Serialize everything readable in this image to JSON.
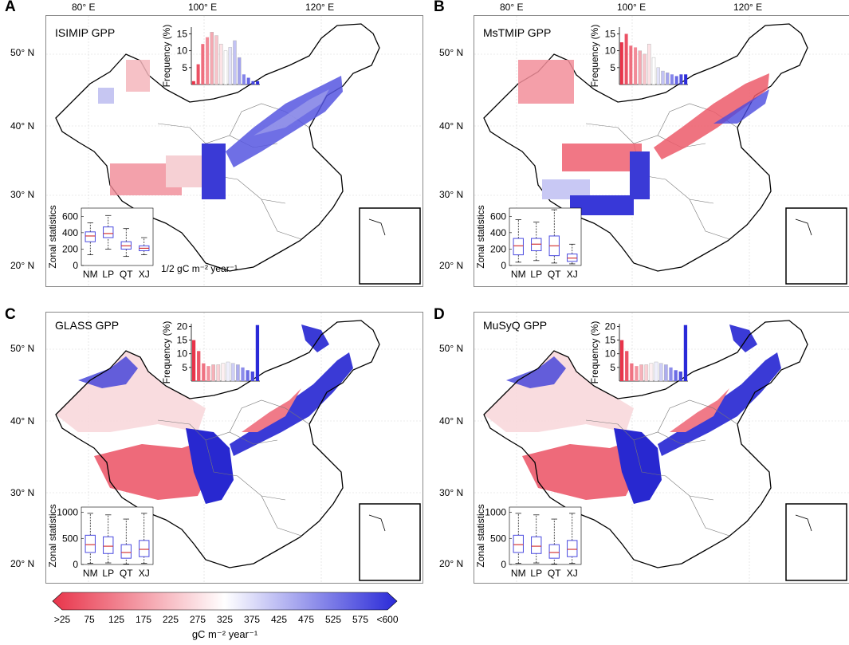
{
  "colors": {
    "low": "#e8344a",
    "mid": "#ffffff",
    "high": "#2a2ad8",
    "box": "#4a4ae0",
    "median": "#d43838",
    "grid": "#c8c8c8"
  },
  "axes": {
    "lon_labels": [
      "80° E",
      "100° E",
      "120° E"
    ],
    "lat_labels": [
      "50° N",
      "40° N",
      "30° N",
      "20° N"
    ]
  },
  "panels": [
    {
      "letter": "A",
      "title": "ISIMIP GPP",
      "hist_ylabel": "Frequency (%)",
      "box_ylabel": "Zonal statistics",
      "unit_note": "1/2 gC m⁻² year⁻¹"
    },
    {
      "letter": "B",
      "title": "MsTMIP GPP",
      "hist_ylabel": "Frequency (%)",
      "box_ylabel": "Zonal statistics",
      "unit_note": ""
    },
    {
      "letter": "C",
      "title": "GLASS GPP",
      "hist_ylabel": "Frequency (%)",
      "box_ylabel": "Zonal statistics",
      "unit_note": ""
    },
    {
      "letter": "D",
      "title": "MuSyQ GPP",
      "hist_ylabel": "Frequency (%)",
      "box_ylabel": "Zonal statistics",
      "unit_note": ""
    }
  ],
  "colorbar": {
    "ticks": [
      ">25",
      "75",
      "125",
      "175",
      "225",
      "275",
      "325",
      "375",
      "425",
      "475",
      "525",
      "575",
      "<600"
    ],
    "title": "gC m⁻² year⁻¹"
  },
  "chart_data": [
    {
      "type": "bar",
      "title": "ISIMIP GPP histogram",
      "ylabel": "Frequency (%)",
      "ylim": [
        0,
        17
      ],
      "yticks": [
        "5",
        "10",
        "15"
      ],
      "values": [
        1,
        6,
        12,
        14,
        15.5,
        14.5,
        12,
        10,
        11,
        13,
        8,
        3,
        2,
        1,
        1
      ]
    },
    {
      "type": "bar",
      "title": "MsTMIP GPP histogram",
      "ylabel": "Frequency (%)",
      "ylim": [
        0,
        17
      ],
      "yticks": [
        "5",
        "10",
        "15"
      ],
      "values": [
        12.5,
        15,
        11.5,
        11,
        10,
        9,
        12,
        8,
        5,
        4,
        3.5,
        3,
        2.5,
        3,
        3
      ]
    },
    {
      "type": "bar",
      "title": "GLASS GPP histogram",
      "ylabel": "Frequency (%)",
      "ylim": [
        0,
        21
      ],
      "yticks": [
        "5",
        "10",
        "15",
        "20"
      ],
      "values": [
        15,
        11,
        6.5,
        5.5,
        6,
        6,
        6.5,
        7,
        6.5,
        6,
        5,
        4,
        3.5,
        20.5
      ]
    },
    {
      "type": "bar",
      "title": "MuSyQ GPP histogram",
      "ylabel": "Frequency (%)",
      "ylim": [
        0,
        21
      ],
      "yticks": [
        "5",
        "10",
        "15",
        "20"
      ],
      "values": [
        15,
        11,
        6.5,
        5.5,
        6,
        6,
        6.5,
        7,
        6.5,
        6,
        5,
        4,
        3.5,
        20.5
      ]
    },
    {
      "type": "box",
      "title": "ISIMIP zonal statistics",
      "ylabel": "Zonal statistics",
      "ylim": [
        0,
        700
      ],
      "yticks": [
        "0",
        "200",
        "400",
        "600"
      ],
      "categories": [
        "NM",
        "LP",
        "QT",
        "XJ"
      ],
      "stats": [
        [
          130,
          290,
          360,
          410,
          520
        ],
        [
          200,
          340,
          390,
          470,
          610
        ],
        [
          110,
          200,
          240,
          290,
          450
        ],
        [
          130,
          180,
          210,
          240,
          340
        ]
      ]
    },
    {
      "type": "box",
      "title": "MsTMIP zonal statistics",
      "ylabel": "Zonal statistics",
      "ylim": [
        0,
        700
      ],
      "yticks": [
        "0",
        "200",
        "400",
        "600"
      ],
      "categories": [
        "NM",
        "LP",
        "QT",
        "XJ"
      ],
      "stats": [
        [
          40,
          130,
          240,
          330,
          560
        ],
        [
          60,
          180,
          260,
          330,
          530
        ],
        [
          30,
          120,
          240,
          360,
          680
        ],
        [
          20,
          50,
          90,
          140,
          260
        ]
      ]
    },
    {
      "type": "box",
      "title": "GLASS zonal statistics",
      "ylabel": "Zonal statistics",
      "ylim": [
        0,
        1100
      ],
      "yticks": [
        "0",
        "500",
        "1000"
      ],
      "categories": [
        "NM",
        "LP",
        "QT",
        "XJ"
      ],
      "stats": [
        [
          20,
          230,
          380,
          560,
          980
        ],
        [
          30,
          210,
          350,
          530,
          950
        ],
        [
          10,
          120,
          230,
          380,
          870
        ],
        [
          20,
          150,
          290,
          460,
          980
        ]
      ]
    },
    {
      "type": "box",
      "title": "MuSyQ zonal statistics",
      "ylabel": "Zonal statistics",
      "ylim": [
        0,
        1100
      ],
      "yticks": [
        "0",
        "500",
        "1000"
      ],
      "categories": [
        "NM",
        "LP",
        "QT",
        "XJ"
      ],
      "stats": [
        [
          20,
          230,
          380,
          560,
          980
        ],
        [
          30,
          210,
          350,
          530,
          950
        ],
        [
          10,
          120,
          230,
          380,
          870
        ],
        [
          20,
          150,
          290,
          460,
          980
        ]
      ]
    }
  ]
}
